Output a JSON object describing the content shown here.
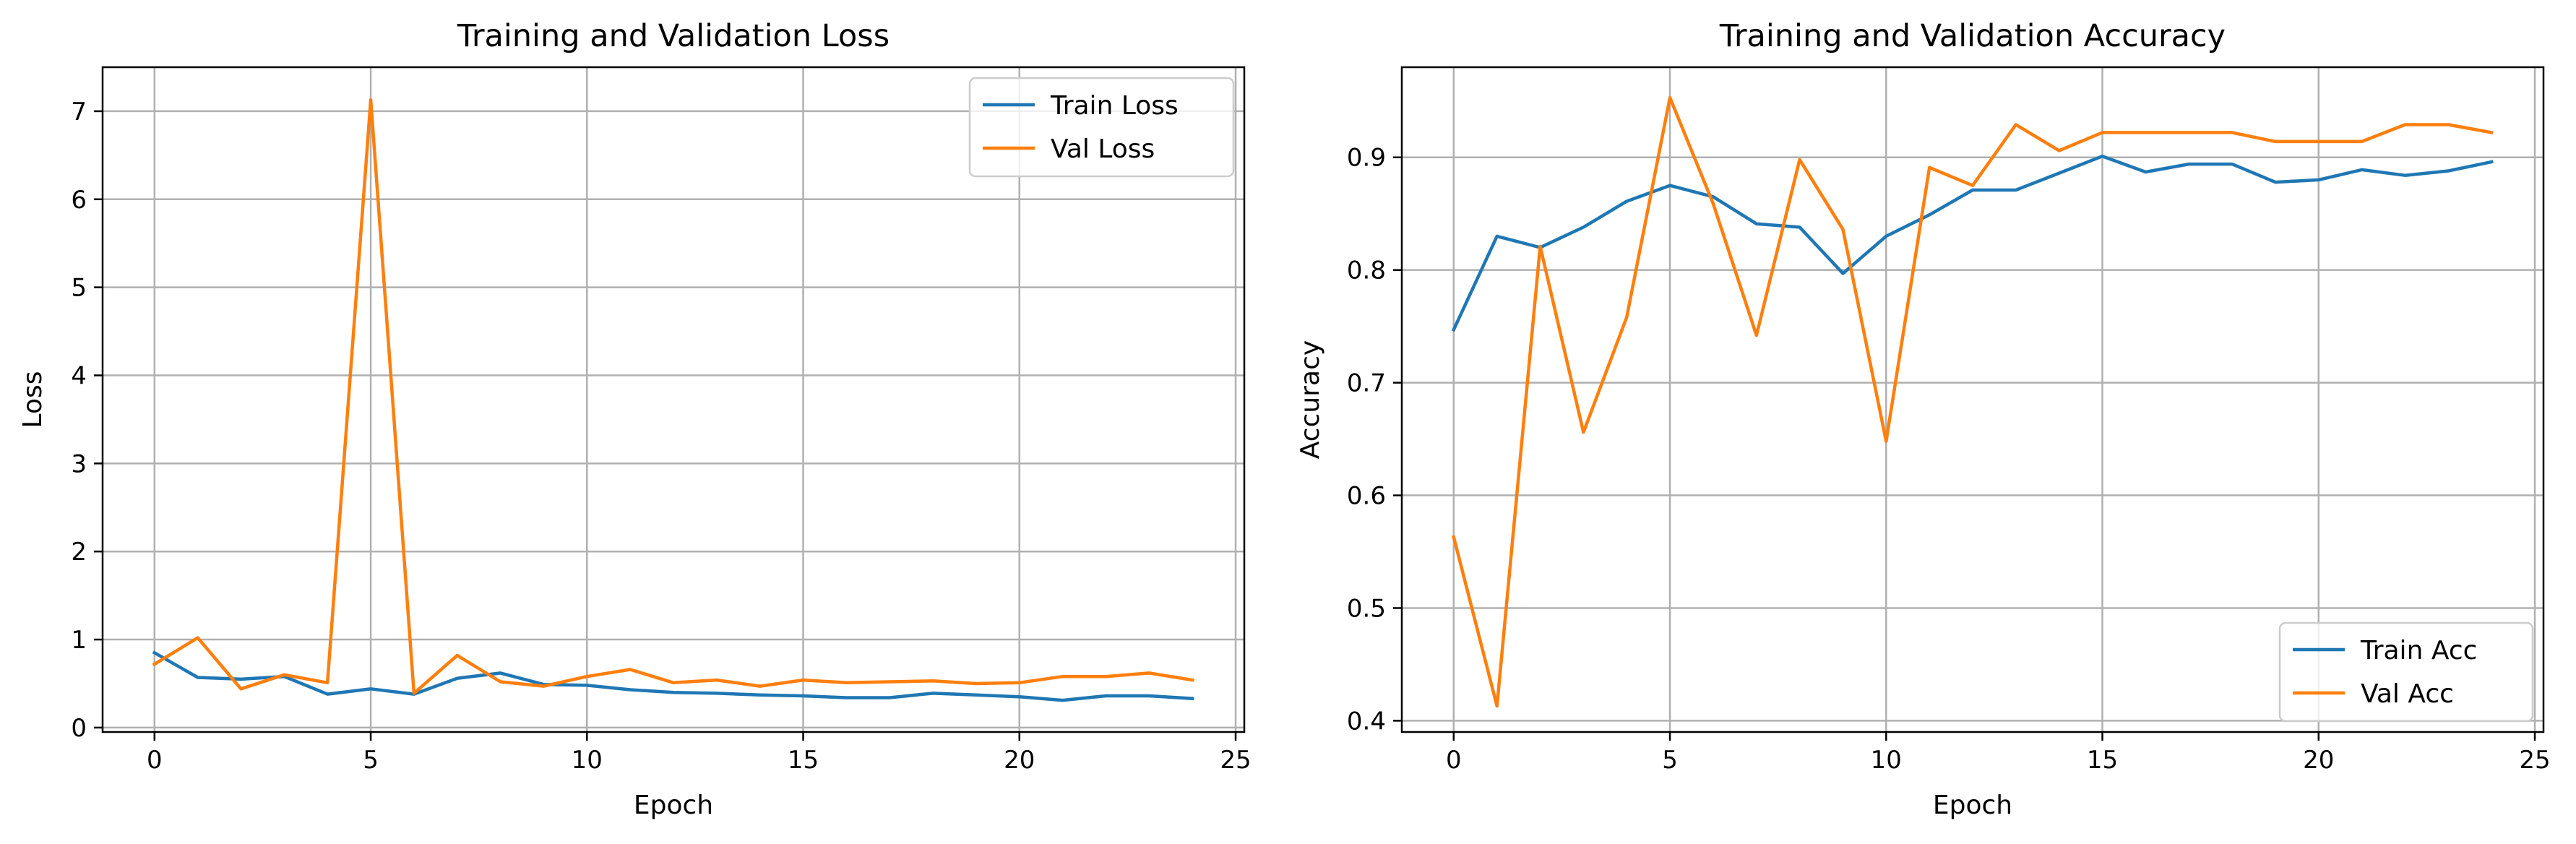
{
  "chart_data": [
    {
      "type": "line",
      "title": "Training and Validation Loss",
      "xlabel": "Epoch",
      "ylabel": "Loss",
      "xlim": [
        -1.2,
        25.2
      ],
      "ylim": [
        -0.05,
        7.5
      ],
      "xticks": [
        0,
        5,
        10,
        15,
        20,
        25
      ],
      "yticks": [
        0,
        1,
        2,
        3,
        4,
        5,
        6,
        7
      ],
      "grid": true,
      "legend_position": "top-right",
      "x": [
        0,
        1,
        2,
        3,
        4,
        5,
        6,
        7,
        8,
        9,
        10,
        11,
        12,
        13,
        14,
        15,
        16,
        17,
        18,
        19,
        20,
        21,
        22,
        23,
        24
      ],
      "series": [
        {
          "name": "Train Loss",
          "color": "#1f77b4",
          "values": [
            0.85,
            0.57,
            0.55,
            0.58,
            0.38,
            0.44,
            0.38,
            0.56,
            0.62,
            0.49,
            0.48,
            0.43,
            0.4,
            0.39,
            0.37,
            0.36,
            0.34,
            0.34,
            0.39,
            0.37,
            0.35,
            0.31,
            0.36,
            0.36,
            0.33
          ]
        },
        {
          "name": "Val Loss",
          "color": "#ff7f0e",
          "values": [
            0.72,
            1.02,
            0.44,
            0.6,
            0.51,
            7.13,
            0.39,
            0.82,
            0.52,
            0.47,
            0.58,
            0.66,
            0.51,
            0.54,
            0.47,
            0.54,
            0.51,
            0.52,
            0.53,
            0.5,
            0.51,
            0.58,
            0.58,
            0.62,
            0.54
          ]
        }
      ]
    },
    {
      "type": "line",
      "title": "Training and Validation Accuracy",
      "xlabel": "Epoch",
      "ylabel": "Accuracy",
      "xlim": [
        -1.2,
        25.2
      ],
      "ylim": [
        0.39,
        0.98
      ],
      "xticks": [
        0,
        5,
        10,
        15,
        20,
        25
      ],
      "yticks": [
        0.4,
        0.5,
        0.6,
        0.7,
        0.8,
        0.9
      ],
      "grid": true,
      "legend_position": "bottom-right",
      "x": [
        0,
        1,
        2,
        3,
        4,
        5,
        6,
        7,
        8,
        9,
        10,
        11,
        12,
        13,
        14,
        15,
        16,
        17,
        18,
        19,
        20,
        21,
        22,
        23,
        24
      ],
      "series": [
        {
          "name": "Train Acc",
          "color": "#1f77b4",
          "values": [
            0.747,
            0.83,
            0.82,
            0.838,
            0.861,
            0.875,
            0.865,
            0.841,
            0.838,
            0.797,
            0.83,
            0.849,
            0.871,
            0.871,
            0.886,
            0.901,
            0.887,
            0.894,
            0.894,
            0.878,
            0.88,
            0.889,
            0.884,
            0.888,
            0.896
          ]
        },
        {
          "name": "Val Acc",
          "color": "#ff7f0e",
          "values": [
            0.563,
            0.413,
            0.821,
            0.656,
            0.758,
            0.953,
            0.859,
            0.742,
            0.898,
            0.836,
            0.648,
            0.891,
            0.875,
            0.929,
            0.906,
            0.922,
            0.922,
            0.922,
            0.922,
            0.914,
            0.914,
            0.914,
            0.929,
            0.929,
            0.922
          ]
        }
      ]
    }
  ]
}
